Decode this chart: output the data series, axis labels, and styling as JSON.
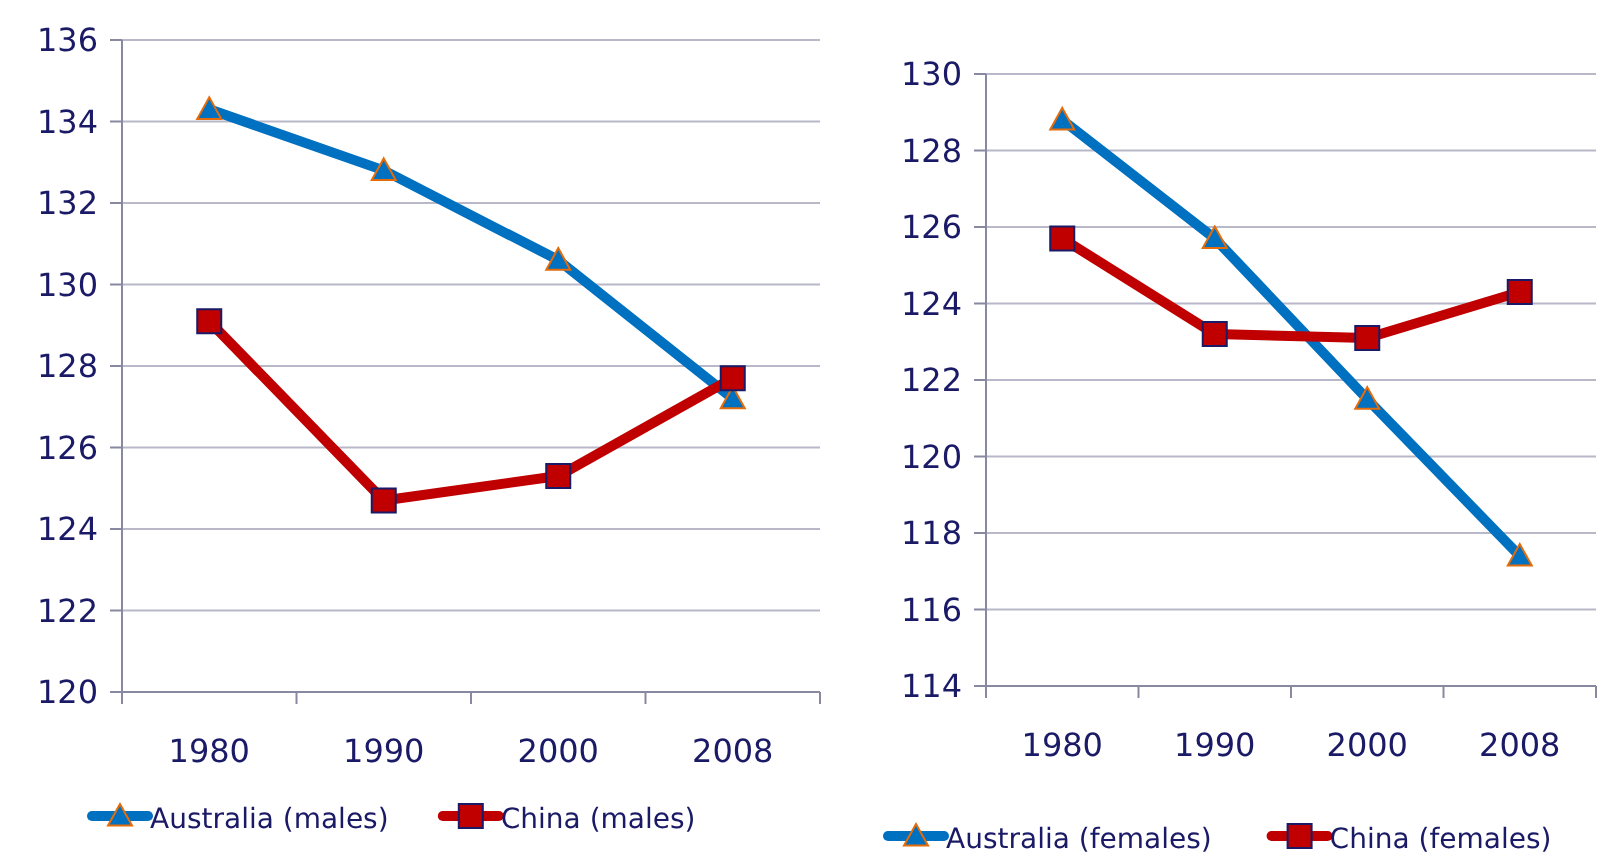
{
  "chart_data": [
    {
      "type": "line",
      "categories": [
        "1980",
        "1990",
        "2000",
        "2008"
      ],
      "ylim": [
        120,
        136
      ],
      "yticks": [
        120,
        122,
        124,
        126,
        128,
        130,
        132,
        134,
        136
      ],
      "grid": "y",
      "legend": "bottom",
      "series": [
        {
          "name": "Australia (males)",
          "color": "#0070c0",
          "marker": "triangle",
          "values": [
            134.3,
            132.8,
            130.6,
            127.2
          ]
        },
        {
          "name": "China (males)",
          "color": "#c00000",
          "marker": "square",
          "values": [
            129.1,
            124.7,
            125.3,
            127.7
          ]
        }
      ]
    },
    {
      "type": "line",
      "categories": [
        "1980",
        "1990",
        "2000",
        "2008"
      ],
      "ylim": [
        114,
        130
      ],
      "yticks": [
        114,
        116,
        118,
        120,
        122,
        124,
        126,
        128,
        130
      ],
      "grid": "y",
      "legend": "bottom",
      "series": [
        {
          "name": "Australia (females)",
          "color": "#0070c0",
          "marker": "triangle",
          "values": [
            128.8,
            125.7,
            121.5,
            117.4
          ]
        },
        {
          "name": "China (females)",
          "color": "#c00000",
          "marker": "square",
          "values": [
            125.7,
            123.2,
            123.1,
            124.3
          ]
        }
      ]
    }
  ]
}
